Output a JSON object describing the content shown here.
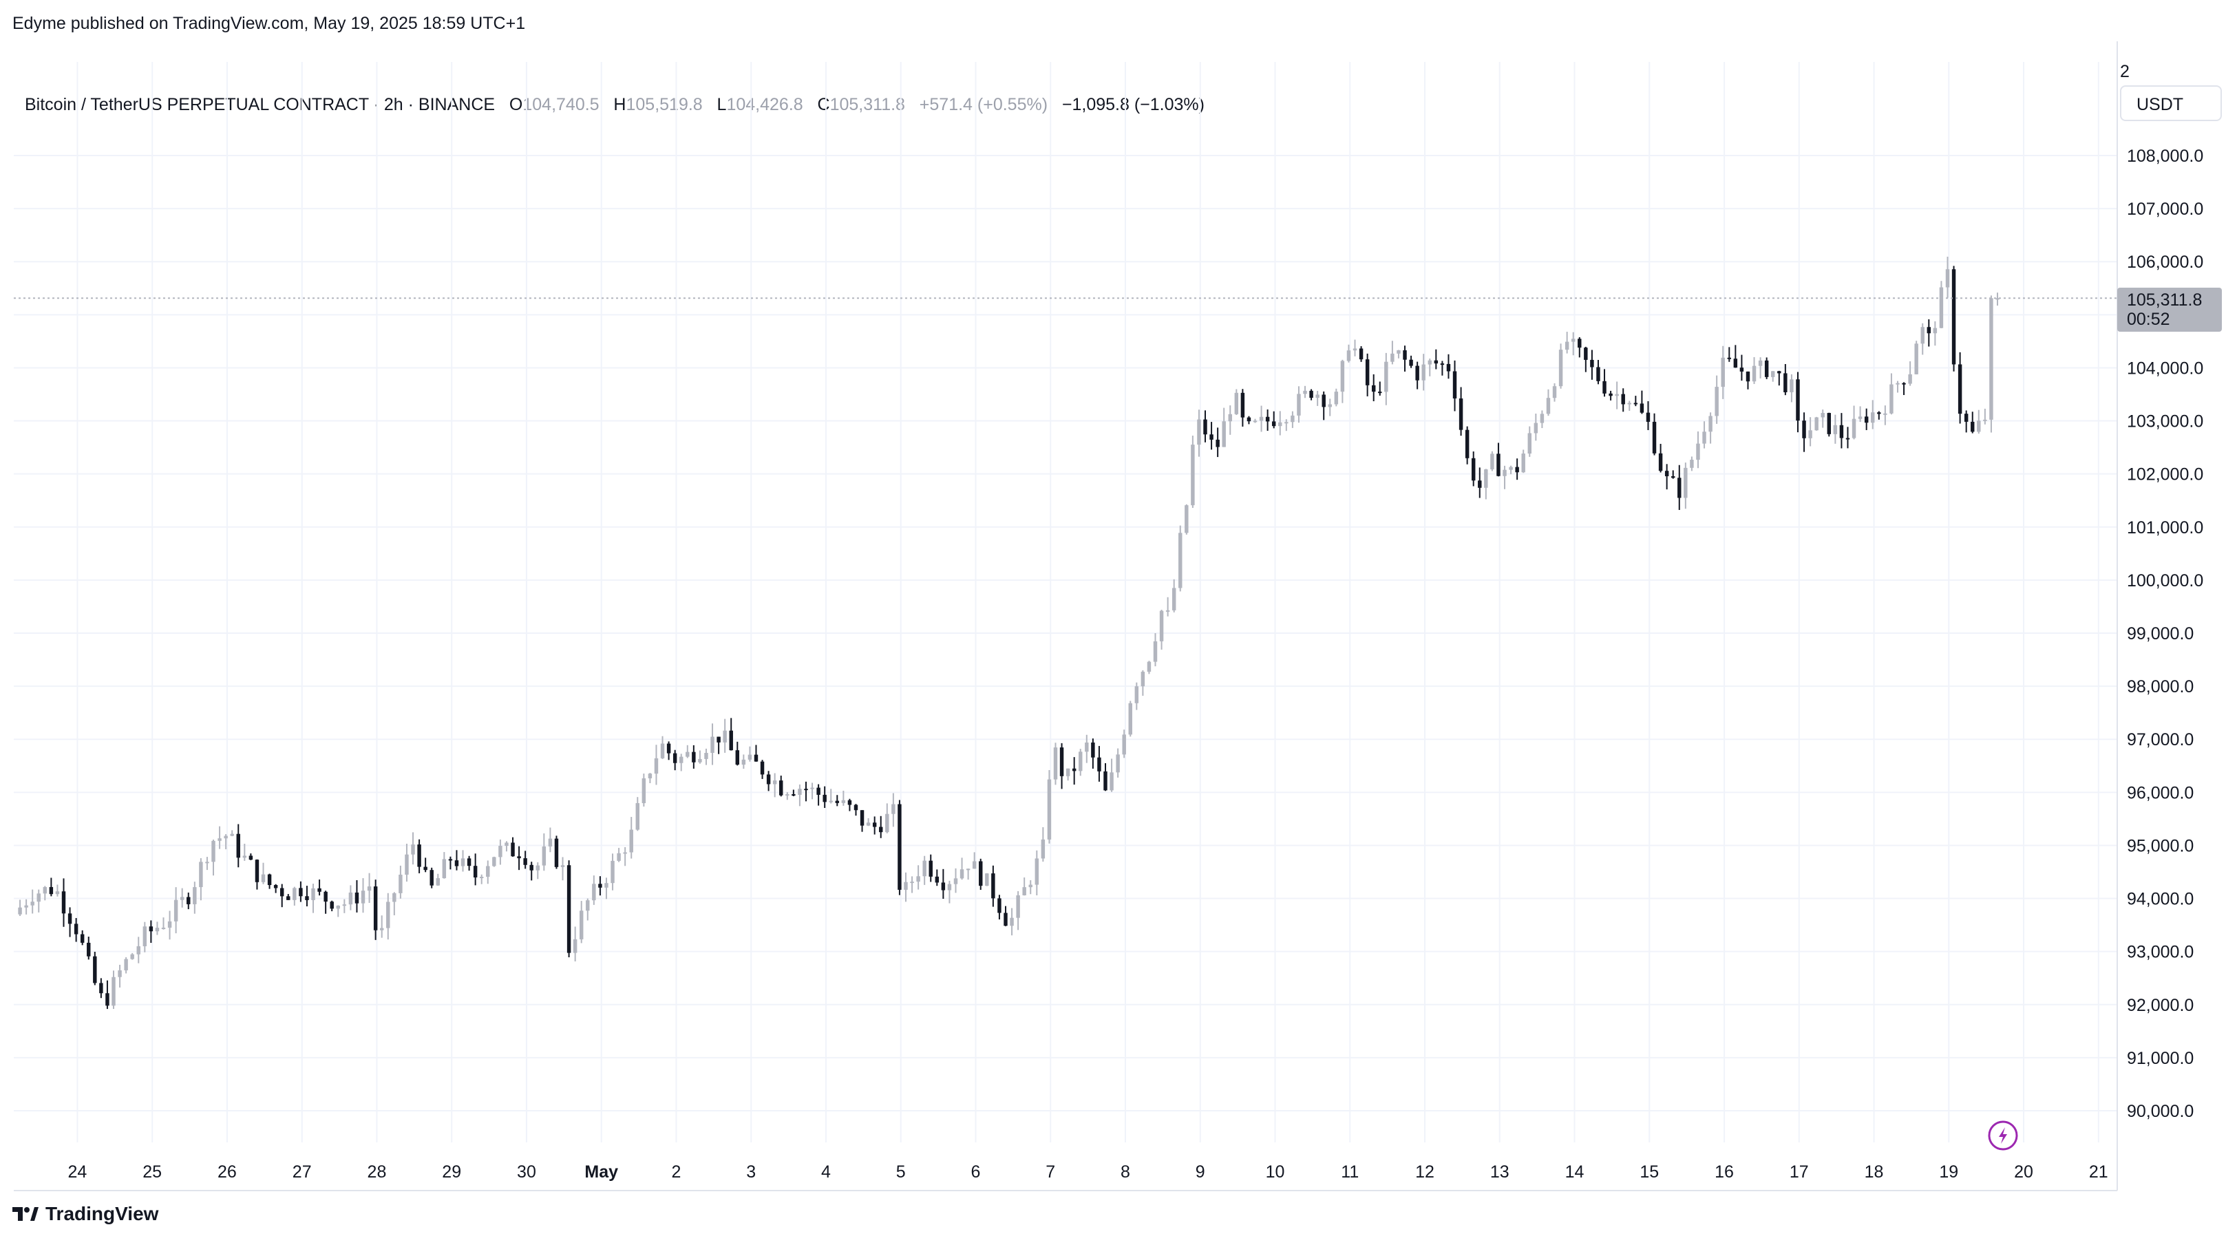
{
  "publisher_line": "Edyme published on TradingView.com, May 19, 2025 18:59 UTC+1",
  "legend": {
    "symbol": "Bitcoin / TetherUS PERPETUAL CONTRACT · 2h · BINANCE",
    "o_label": "O",
    "o_value": "104,740.5",
    "h_label": "H",
    "h_value": "105,519.8",
    "l_label": "L",
    "l_value": "104,426.8",
    "c_label": "C",
    "c_value": "105,311.8",
    "change": "+571.4 (+0.55%)",
    "other_change": "−1,095.8 (−1.03%)"
  },
  "top_right_label": "2",
  "currency_button": "USDT",
  "last_price": {
    "value": "105,311.8",
    "countdown": "00:52"
  },
  "brand": "TradingView",
  "colors": {
    "up": "#b2b5be",
    "down": "#131722",
    "grid": "#f0f3fa",
    "price_line": "#b2b5be",
    "bolt": "#9c27b0"
  },
  "icons": [
    "tradingview-logo-icon",
    "lightning-icon"
  ],
  "chart_data": {
    "type": "candlestick",
    "title": "Bitcoin / TetherUS PERPETUAL CONTRACT · 2h · BINANCE",
    "interval": "2h",
    "y_range": [
      89300,
      109000
    ],
    "y_ticks": [
      90000,
      91000,
      92000,
      93000,
      94000,
      95000,
      96000,
      97000,
      98000,
      99000,
      100000,
      101000,
      102000,
      103000,
      104000,
      105000,
      106000,
      107000,
      108000
    ],
    "y_tick_labels": [
      "90,000.0",
      "91,000.0",
      "92,000.0",
      "93,000.0",
      "94,000.0",
      "95,000.0",
      "96,000.0",
      "97,000.0",
      "98,000.0",
      "99,000.0",
      "100,000.0",
      "101,000.0",
      "102,000.0",
      "103,000.0",
      "104,000.0",
      "105,000.0",
      "106,000.0",
      "107,000.0",
      "108,000.0"
    ],
    "x_range_days": [
      23.15,
      21.25
    ],
    "x_tick_labels": [
      "24",
      "25",
      "26",
      "27",
      "28",
      "29",
      "30",
      "May",
      "2",
      "3",
      "4",
      "5",
      "6",
      "7",
      "8",
      "9",
      "10",
      "11",
      "12",
      "13",
      "14",
      "15",
      "16",
      "17",
      "18",
      "19",
      "20",
      "21"
    ],
    "x_tick_days": [
      24,
      25,
      26,
      27,
      28,
      29,
      30,
      31,
      32,
      33,
      34,
      35,
      36,
      37,
      38,
      39,
      40,
      41,
      42,
      43,
      44,
      45,
      46,
      47,
      48,
      49,
      50,
      51
    ],
    "grid": true,
    "last_price": 105311.8,
    "close_anchors": [
      [
        23.15,
        93700
      ],
      [
        23.4,
        94100
      ],
      [
        23.7,
        94200
      ],
      [
        24.0,
        93400
      ],
      [
        24.2,
        92500
      ],
      [
        24.35,
        92000
      ],
      [
        24.6,
        92700
      ],
      [
        24.9,
        93300
      ],
      [
        25.2,
        93600
      ],
      [
        25.5,
        94100
      ],
      [
        25.8,
        95100
      ],
      [
        26.0,
        95200
      ],
      [
        26.2,
        94800
      ],
      [
        26.5,
        94300
      ],
      [
        26.8,
        94100
      ],
      [
        27.0,
        94200
      ],
      [
        27.3,
        94000
      ],
      [
        27.6,
        93900
      ],
      [
        27.95,
        94300
      ],
      [
        28.0,
        93000
      ],
      [
        28.2,
        94000
      ],
      [
        28.5,
        95100
      ],
      [
        28.7,
        94100
      ],
      [
        29.0,
        94800
      ],
      [
        29.3,
        94400
      ],
      [
        29.6,
        94900
      ],
      [
        29.95,
        94900
      ],
      [
        30.1,
        94500
      ],
      [
        30.3,
        95000
      ],
      [
        30.5,
        94500
      ],
      [
        30.55,
        93000
      ],
      [
        30.8,
        93900
      ],
      [
        31.1,
        94500
      ],
      [
        31.4,
        95200
      ],
      [
        31.6,
        96300
      ],
      [
        31.8,
        96900
      ],
      [
        32.0,
        96600
      ],
      [
        32.3,
        96800
      ],
      [
        32.6,
        97100
      ],
      [
        32.8,
        96600
      ],
      [
        33.1,
        96500
      ],
      [
        33.4,
        96100
      ],
      [
        33.7,
        96100
      ],
      [
        34.0,
        95900
      ],
      [
        34.3,
        95700
      ],
      [
        34.6,
        95300
      ],
      [
        34.9,
        95600
      ],
      [
        35.0,
        94000
      ],
      [
        35.3,
        94700
      ],
      [
        35.6,
        94300
      ],
      [
        35.9,
        94700
      ],
      [
        36.2,
        94200
      ],
      [
        36.45,
        93500
      ],
      [
        36.6,
        94000
      ],
      [
        36.8,
        94600
      ],
      [
        36.95,
        95100
      ],
      [
        37.0,
        97000
      ],
      [
        37.2,
        96200
      ],
      [
        37.5,
        96900
      ],
      [
        37.75,
        95900
      ],
      [
        37.95,
        97000
      ],
      [
        38.1,
        98000
      ],
      [
        38.3,
        98500
      ],
      [
        38.5,
        99500
      ],
      [
        38.6,
        99200
      ],
      [
        38.7,
        100500
      ],
      [
        38.8,
        101200
      ],
      [
        38.9,
        102500
      ],
      [
        39.0,
        103000
      ],
      [
        39.2,
        102400
      ],
      [
        39.45,
        103500
      ],
      [
        39.6,
        102800
      ],
      [
        39.9,
        103000
      ],
      [
        40.2,
        103200
      ],
      [
        40.5,
        103600
      ],
      [
        40.8,
        103300
      ],
      [
        41.0,
        104600
      ],
      [
        41.3,
        103400
      ],
      [
        41.6,
        104300
      ],
      [
        41.9,
        103900
      ],
      [
        42.1,
        104100
      ],
      [
        42.35,
        104000
      ],
      [
        42.55,
        102300
      ],
      [
        42.75,
        101700
      ],
      [
        42.9,
        102200
      ],
      [
        43.2,
        102000
      ],
      [
        43.5,
        103000
      ],
      [
        43.7,
        103700
      ],
      [
        43.9,
        104500
      ],
      [
        44.2,
        104000
      ],
      [
        44.5,
        103500
      ],
      [
        44.7,
        103500
      ],
      [
        45.0,
        102900
      ],
      [
        45.2,
        101900
      ],
      [
        45.4,
        101700
      ],
      [
        45.6,
        102400
      ],
      [
        45.8,
        103200
      ],
      [
        46.0,
        104100
      ],
      [
        46.3,
        103900
      ],
      [
        46.6,
        104000
      ],
      [
        46.9,
        103600
      ],
      [
        47.0,
        102700
      ],
      [
        47.3,
        103000
      ],
      [
        47.6,
        102700
      ],
      [
        47.9,
        103100
      ],
      [
        48.1,
        103200
      ],
      [
        48.3,
        103700
      ],
      [
        48.5,
        104000
      ],
      [
        48.6,
        104800
      ],
      [
        48.75,
        104500
      ],
      [
        48.85,
        105100
      ],
      [
        49.0,
        105800
      ],
      [
        49.1,
        103400
      ],
      [
        49.3,
        102700
      ],
      [
        49.5,
        103100
      ],
      [
        49.6,
        104000
      ],
      [
        49.65,
        105311.8
      ]
    ]
  }
}
